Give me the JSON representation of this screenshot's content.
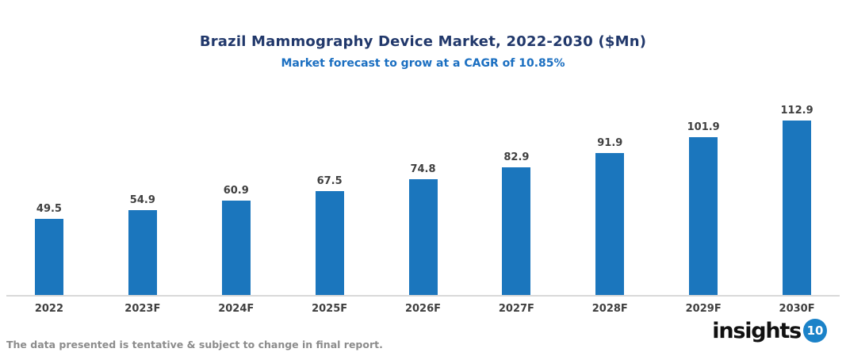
{
  "header": {
    "title": "Brazil Mammography Device Market, 2022-2030 ($Mn)",
    "subtitle": "Market forecast to grow at a CAGR of 10.85%"
  },
  "chart_data": {
    "type": "bar",
    "categories": [
      "2022",
      "2023F",
      "2024F",
      "2025F",
      "2026F",
      "2027F",
      "2028F",
      "2029F",
      "2030F"
    ],
    "values": [
      49.5,
      54.9,
      60.9,
      67.5,
      74.8,
      82.9,
      91.9,
      101.9,
      112.9
    ],
    "title": "Brazil Mammography Device Market, 2022-2030 ($Mn)",
    "subtitle": "Market forecast to grow at a CAGR of 10.85%",
    "xlabel": "",
    "ylabel": "",
    "ylim": [
      0,
      120
    ],
    "grid": false,
    "legend": "none",
    "value_labels": true,
    "cagr": "10.85%"
  },
  "footer": {
    "note": "The data presented is tentative & subject to change in final report."
  },
  "logo": {
    "text": "insights",
    "badge": "10"
  },
  "colors": {
    "bar": "#1B76BD",
    "title": "#21386B",
    "subtitle": "#1B6FC1",
    "value_label": "#3F3F3F",
    "axis_label": "#3F3F3F",
    "axis_line": "#D9D9D9",
    "footer_text": "#8C8C8C",
    "logo_text": "#111111",
    "logo_badge_bg": "#1B82C8",
    "logo_badge_text": "#FFFFFF"
  }
}
